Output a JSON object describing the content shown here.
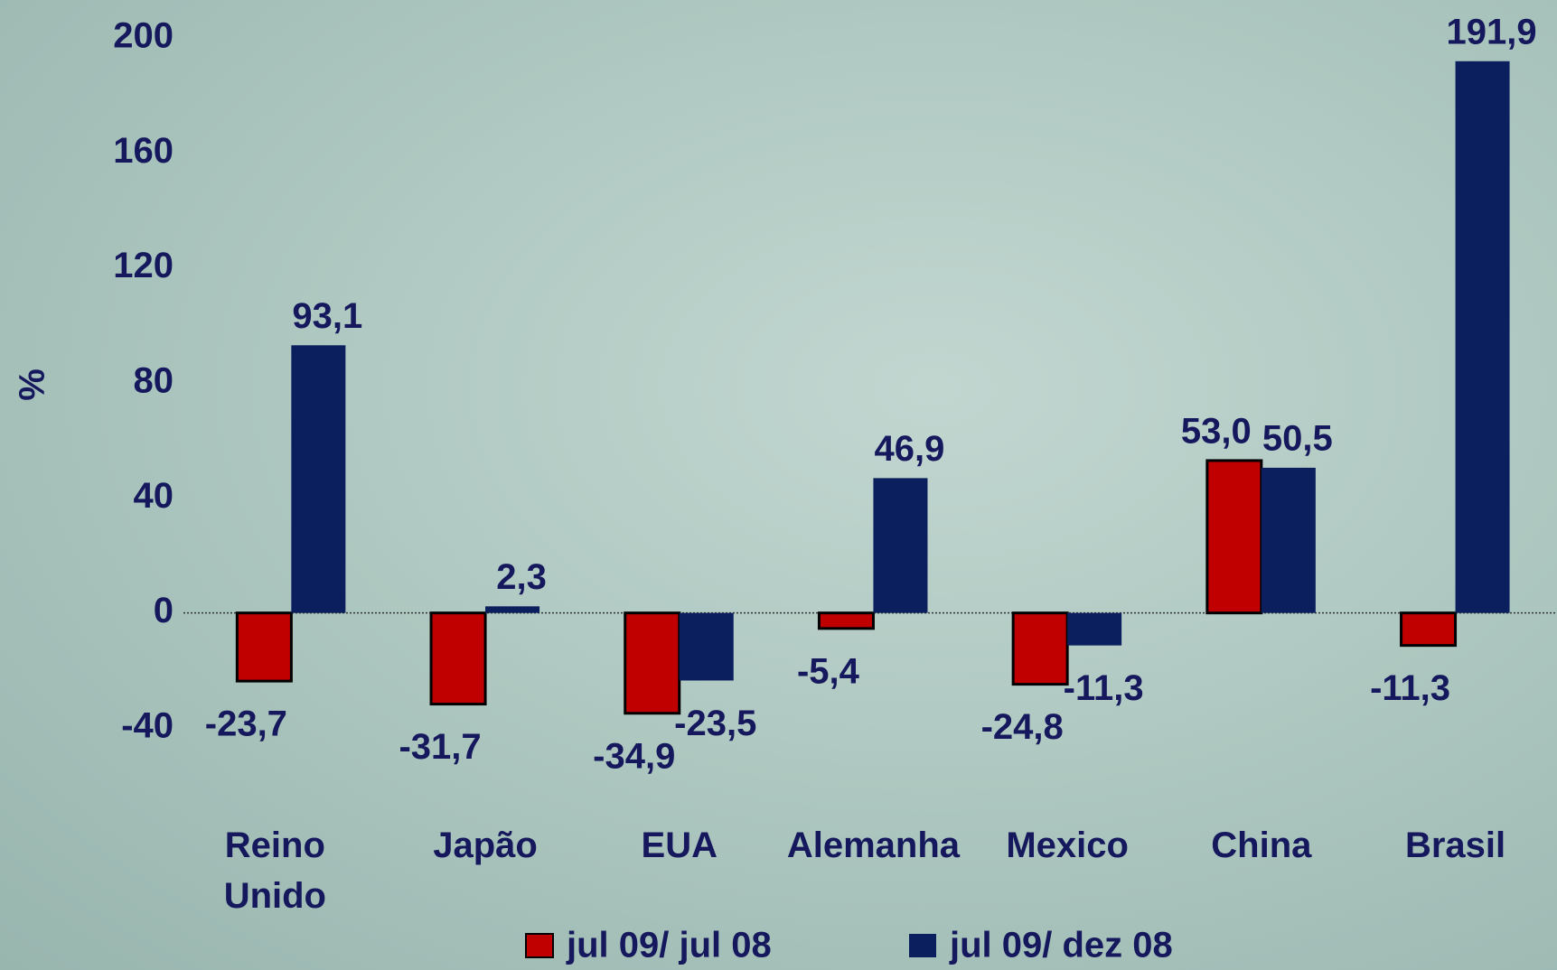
{
  "chart_data": {
    "type": "bar",
    "y_label": "%",
    "categories": [
      "Reino Unido",
      "Japão",
      "EUA",
      "Alemanha",
      "Mexico",
      "China",
      "Brasil"
    ],
    "series": [
      {
        "name": "jul 09/ jul 08",
        "color": "#c00000",
        "values": [
          -23.7,
          -31.7,
          -34.9,
          -5.4,
          -24.8,
          53.0,
          -11.3
        ],
        "value_labels": [
          "-23,7",
          "-31,7",
          "-34,9",
          "-5,4",
          "-24,8",
          "53,0",
          "-11,3"
        ]
      },
      {
        "name": "jul 09/ dez 08",
        "color": "#0b1f5e",
        "values": [
          93.1,
          2.3,
          -23.5,
          46.9,
          -11.3,
          50.5,
          191.9
        ],
        "value_labels": [
          "93,1",
          "2,3",
          "-23,5",
          "46,9",
          "-11,3",
          "50,5",
          "191,9"
        ]
      }
    ],
    "ylim": [
      -40,
      200
    ],
    "yticks": [
      -40,
      0,
      40,
      80,
      120,
      160,
      200
    ],
    "zero_line": true
  }
}
